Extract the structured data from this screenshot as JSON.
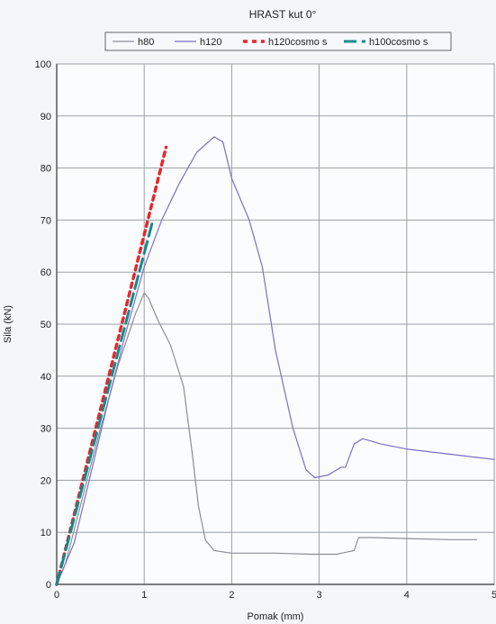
{
  "chart_data": {
    "type": "line",
    "title": "HRAST kut 0°",
    "xlabel": "Pomak (mm)",
    "ylabel": "Sila (kN)",
    "xlim": [
      0,
      5
    ],
    "ylim": [
      0,
      100
    ],
    "xticks": [
      0,
      1,
      2,
      3,
      4,
      5
    ],
    "yticks": [
      0,
      10,
      20,
      30,
      40,
      50,
      60,
      70,
      80,
      90,
      100
    ],
    "grid": true,
    "legend_position": "top",
    "series": [
      {
        "name": "h80",
        "color": "#8a8f96",
        "style": "solid",
        "x": [
          0,
          0.1,
          0.3,
          0.5,
          0.7,
          0.9,
          1.0,
          1.05,
          1.15,
          1.3,
          1.45,
          1.55,
          1.62,
          1.7,
          1.8,
          2.0,
          2.5,
          2.9,
          3.2,
          3.4,
          3.45,
          3.6,
          4.0,
          4.5,
          4.8
        ],
        "y": [
          0,
          4,
          17,
          30,
          42,
          52,
          56,
          55,
          51,
          46,
          38,
          25,
          15,
          8.5,
          6.5,
          6,
          6,
          5.8,
          5.8,
          6.5,
          9,
          9,
          8.8,
          8.6,
          8.6
        ]
      },
      {
        "name": "h120",
        "color": "#7b6fc7",
        "style": "solid",
        "x": [
          0,
          0.2,
          0.4,
          0.6,
          0.8,
          1.0,
          1.2,
          1.4,
          1.6,
          1.8,
          1.9,
          2.0,
          2.2,
          2.35,
          2.5,
          2.7,
          2.85,
          2.95,
          3.1,
          3.25,
          3.3,
          3.4,
          3.5,
          3.7,
          4.0,
          4.5,
          5.0
        ],
        "y": [
          0,
          8,
          22,
          36,
          49,
          61,
          70,
          77,
          83,
          86,
          85,
          78,
          70,
          61,
          45,
          30,
          22,
          20.5,
          21,
          22.5,
          22.5,
          27,
          28,
          27,
          26,
          25,
          24
        ]
      },
      {
        "name": "h120cosmo s",
        "color": "#e8262b",
        "style": "dashed-dots",
        "x": [
          0,
          1.25
        ],
        "y": [
          0,
          84
        ]
      },
      {
        "name": "h100cosmo s",
        "color": "#0f8b8d",
        "style": "dash",
        "x": [
          0,
          1.1
        ],
        "y": [
          0,
          70
        ]
      }
    ]
  }
}
